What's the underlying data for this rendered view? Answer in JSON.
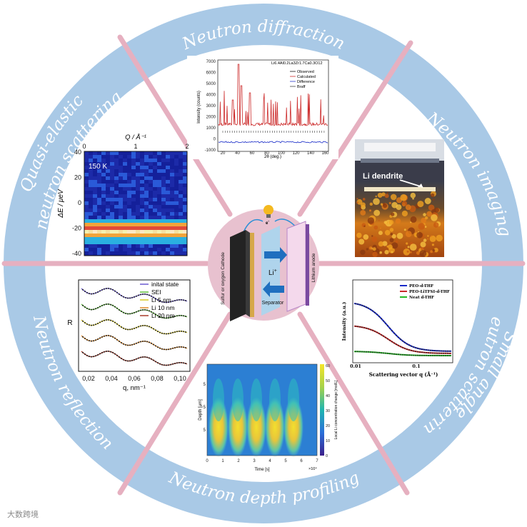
{
  "ring_labels": {
    "top": "Neutron diffraction",
    "upper_right": "Neutron imaging",
    "lower_right_1": "Small angle",
    "lower_right_2": "neutron scattering",
    "bottom": "Neutron depth profiling",
    "lower_left": "Neutron reflection",
    "upper_left_1": "Quasi-elastic",
    "upper_left_2": "neutron scattering"
  },
  "center_battery": {
    "cathode": "Sulfur or oxygen Cathode",
    "anode": "Lithium anode",
    "separator": "Separator",
    "ion": "Li",
    "ion_sup": "+",
    "electron": "e",
    "electron_sup": "-"
  },
  "diffraction": {
    "formula": "Li6.4Al0.2La3Zr1.7Ca0.3O12",
    "legend": [
      "Observed",
      "Calculated",
      "Difference",
      "Braff"
    ],
    "ylabel": "Intensity (counts)",
    "xlabel": "2θ (deg.)",
    "yticks": [
      "7000",
      "6000",
      "5000",
      "4000",
      "3000",
      "2000",
      "1000",
      "0",
      "-1000"
    ],
    "xticks": [
      "20",
      "40",
      "60",
      "80",
      "100",
      "120",
      "140",
      "160"
    ]
  },
  "imaging": {
    "label": "Li dendrite"
  },
  "qens": {
    "top_label": "Q / Å⁻¹",
    "ylabel": "ΔE / μeV",
    "temp": "150 K",
    "xticks": [
      "0",
      "1",
      "2"
    ],
    "yticks": [
      "40",
      "20",
      "0",
      "-20",
      "-40"
    ]
  },
  "reflection": {
    "legend": [
      "inital state",
      "SEI",
      "Li 5 nm",
      "Li 10 nm",
      "Li 20 nm"
    ],
    "ylabel": "R",
    "xlabel": "q, nm⁻¹",
    "xticks": [
      "0,02",
      "0,04",
      "0,06",
      "0,08",
      "0,10"
    ]
  },
  "depth": {
    "ylabel": "Depth [μm]",
    "xlabel": "Time [s]",
    "xmult": "×10⁴",
    "cbar_label": "Local Li concentration change [mol/L]",
    "xticks": [
      "0",
      "1",
      "2",
      "3",
      "4",
      "5",
      "6",
      "7"
    ],
    "yticks": [
      "5",
      "5",
      "5"
    ],
    "cticks": [
      "60",
      "50",
      "40",
      "30",
      "20",
      "10",
      "0"
    ]
  },
  "sans": {
    "legend": [
      "PEO-d-THF",
      "PEO-LiTFSI-d-THF",
      "Neat d-THF"
    ],
    "ylabel": "Intensity (a.u.)",
    "xlabel": "Scattering vector q (Å⁻¹)",
    "xticks": [
      "0.01",
      "0.1"
    ]
  },
  "colors": {
    "ring": "#a9c9e6",
    "spoke": "#e6b0c0",
    "center_disk": "#e8c1cf",
    "label": "#ffffff"
  },
  "watermark": "大数跨境"
}
